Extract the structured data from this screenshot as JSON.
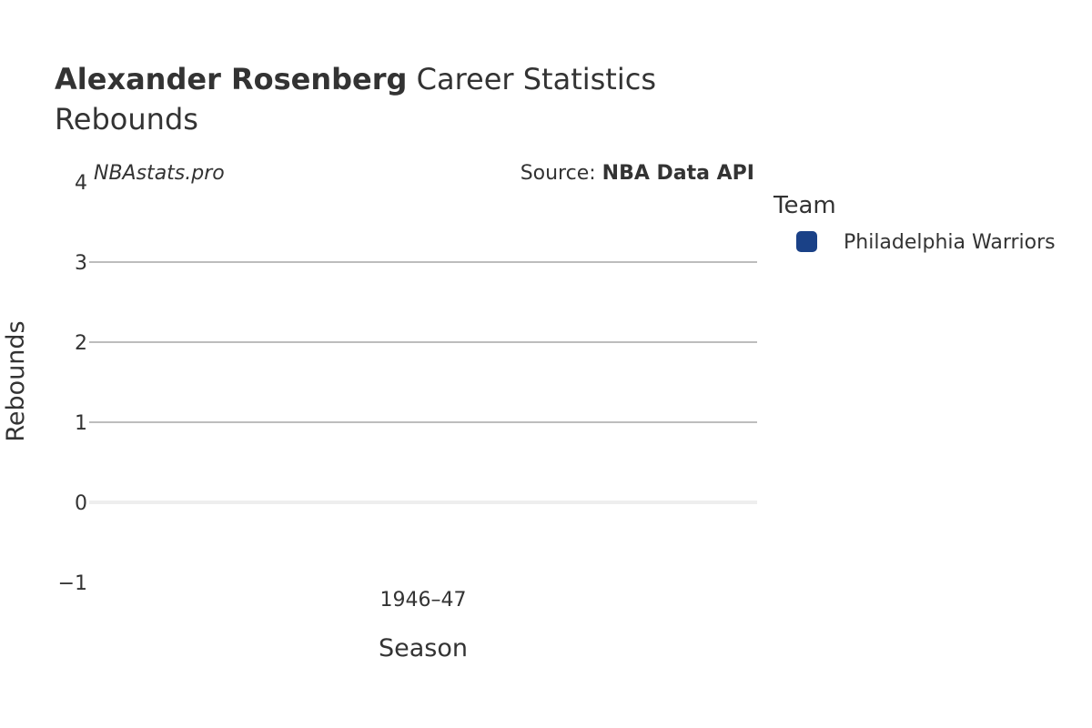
{
  "title": {
    "player_name": "Alexander Rosenberg",
    "title_suffix": " Career Statistics",
    "subtitle": "Rebounds"
  },
  "watermark": "NBAstats.pro",
  "source": {
    "prefix": "Source: ",
    "name": "NBA Data API"
  },
  "legend": {
    "title": "Team",
    "items": [
      {
        "label": "Philadelphia Warriors",
        "color": "#1a4187"
      }
    ]
  },
  "chart_data": {
    "type": "bar",
    "categories": [
      "1946–47"
    ],
    "series": [
      {
        "name": "Philadelphia Warriors",
        "values": [
          0
        ]
      }
    ],
    "xlabel": "Season",
    "ylabel": "Rebounds",
    "ylim": [
      -1,
      4
    ],
    "yticks": [
      -1,
      0,
      1,
      2,
      3,
      4
    ],
    "ytick_labels": [
      "−1",
      "0",
      "1",
      "2",
      "3",
      "4"
    ],
    "grid": true,
    "legend_position": "right"
  },
  "colors": {
    "grid": "#bdbdbd",
    "zero_line": "#eeeeee",
    "text": "#333333"
  }
}
